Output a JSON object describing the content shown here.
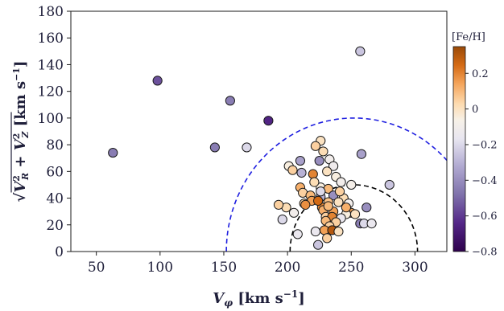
{
  "chart_data": {
    "type": "scatter",
    "xlabel": "V_φ [km s^-1]",
    "ylabel": "√(V_R² + V_Z²) [km s^-1]",
    "xlim": [
      30,
      325
    ],
    "ylim": [
      0,
      180
    ],
    "xticks": [
      50,
      100,
      150,
      200,
      250,
      300
    ],
    "yticks": [
      0,
      20,
      40,
      60,
      80,
      100,
      120,
      140,
      160,
      180
    ],
    "grid": false,
    "colorbar": {
      "label": "[Fe/H]",
      "range": [
        -0.8,
        0.35
      ],
      "ticks": [
        0.2,
        0,
        -0.2,
        -0.4,
        -0.6,
        -0.8
      ],
      "colormap": "PuOr_r"
    },
    "reference_curves": [
      {
        "shape": "semicircle",
        "center_x": 252,
        "center_y": 0,
        "radius": 100,
        "color": "#1f1fe0",
        "style": "dashed"
      },
      {
        "shape": "semicircle",
        "center_x": 252,
        "center_y": 0,
        "radius": 50,
        "color": "#000000",
        "style": "dashed"
      }
    ],
    "points": [
      {
        "x": 63,
        "y": 74,
        "feh": -0.45
      },
      {
        "x": 98,
        "y": 128,
        "feh": -0.55
      },
      {
        "x": 143,
        "y": 78,
        "feh": -0.45
      },
      {
        "x": 155,
        "y": 113,
        "feh": -0.45
      },
      {
        "x": 168,
        "y": 78,
        "feh": -0.2
      },
      {
        "x": 185,
        "y": 98,
        "feh": -0.65
      },
      {
        "x": 257,
        "y": 150,
        "feh": -0.25
      },
      {
        "x": 258,
        "y": 73,
        "feh": -0.35
      },
      {
        "x": 280,
        "y": 50,
        "feh": -0.25
      },
      {
        "x": 226,
        "y": 83,
        "feh": 0.0
      },
      {
        "x": 222,
        "y": 79,
        "feh": 0.05
      },
      {
        "x": 228,
        "y": 75,
        "feh": 0.02
      },
      {
        "x": 233,
        "y": 69,
        "feh": -0.1
      },
      {
        "x": 225,
        "y": 68,
        "feh": -0.4
      },
      {
        "x": 210,
        "y": 68,
        "feh": -0.35
      },
      {
        "x": 236,
        "y": 64,
        "feh": -0.12
      },
      {
        "x": 201,
        "y": 64,
        "feh": -0.05
      },
      {
        "x": 204,
        "y": 61,
        "feh": 0.05
      },
      {
        "x": 211,
        "y": 59,
        "feh": -0.3
      },
      {
        "x": 231,
        "y": 60,
        "feh": 0.0
      },
      {
        "x": 220,
        "y": 58,
        "feh": 0.2
      },
      {
        "x": 238,
        "y": 56,
        "feh": -0.05
      },
      {
        "x": 242,
        "y": 52,
        "feh": -0.1
      },
      {
        "x": 250,
        "y": 50,
        "feh": -0.08
      },
      {
        "x": 226,
        "y": 48,
        "feh": -0.05
      },
      {
        "x": 210,
        "y": 48,
        "feh": 0.12
      },
      {
        "x": 232,
        "y": 47,
        "feh": 0.1
      },
      {
        "x": 212,
        "y": 44,
        "feh": 0.05
      },
      {
        "x": 218,
        "y": 42,
        "feh": 0.1
      },
      {
        "x": 226,
        "y": 41,
        "feh": -0.3
      },
      {
        "x": 236,
        "y": 42,
        "feh": -0.4
      },
      {
        "x": 244,
        "y": 40,
        "feh": 0.02
      },
      {
        "x": 219,
        "y": 38,
        "feh": 0.15
      },
      {
        "x": 213,
        "y": 36,
        "feh": 0.05
      },
      {
        "x": 232,
        "y": 37,
        "feh": 0.08
      },
      {
        "x": 240,
        "y": 37,
        "feh": 0.0
      },
      {
        "x": 248,
        "y": 36,
        "feh": -0.1
      },
      {
        "x": 214,
        "y": 35,
        "feh": 0.18
      },
      {
        "x": 227,
        "y": 33,
        "feh": 0.2
      },
      {
        "x": 228,
        "y": 31,
        "feh": 0.12
      },
      {
        "x": 236,
        "y": 30,
        "feh": 0.15
      },
      {
        "x": 250,
        "y": 29,
        "feh": 0.15
      },
      {
        "x": 253,
        "y": 28,
        "feh": 0.0
      },
      {
        "x": 246,
        "y": 28,
        "feh": -0.05
      },
      {
        "x": 230,
        "y": 26,
        "feh": 0.05
      },
      {
        "x": 235,
        "y": 26,
        "feh": 0.2
      },
      {
        "x": 242,
        "y": 25,
        "feh": -0.15
      },
      {
        "x": 230,
        "y": 23,
        "feh": 0.1
      },
      {
        "x": 238,
        "y": 22,
        "feh": 0.05
      },
      {
        "x": 257,
        "y": 21,
        "feh": -0.45
      },
      {
        "x": 260,
        "y": 21,
        "feh": -0.2
      },
      {
        "x": 266,
        "y": 21,
        "feh": -0.15
      },
      {
        "x": 262,
        "y": 33,
        "feh": -0.4
      },
      {
        "x": 196,
        "y": 24,
        "feh": -0.2
      },
      {
        "x": 205,
        "y": 29,
        "feh": -0.1
      },
      {
        "x": 199,
        "y": 33,
        "feh": 0.02
      },
      {
        "x": 193,
        "y": 35,
        "feh": 0.05
      },
      {
        "x": 233,
        "y": 19,
        "feh": 0.05
      },
      {
        "x": 229,
        "y": 16,
        "feh": 0.15
      },
      {
        "x": 235,
        "y": 16,
        "feh": 0.3
      },
      {
        "x": 240,
        "y": 15,
        "feh": 0.0
      },
      {
        "x": 222,
        "y": 15,
        "feh": -0.15
      },
      {
        "x": 208,
        "y": 13,
        "feh": -0.15
      },
      {
        "x": 231,
        "y": 10,
        "feh": 0.05
      },
      {
        "x": 224,
        "y": 5,
        "feh": -0.25
      },
      {
        "x": 226,
        "y": 45,
        "feh": -0.2
      },
      {
        "x": 221,
        "y": 52,
        "feh": 0.02
      },
      {
        "x": 241,
        "y": 45,
        "feh": 0.05
      },
      {
        "x": 246,
        "y": 33,
        "feh": 0.12
      },
      {
        "x": 224,
        "y": 38,
        "feh": 0.25
      },
      {
        "x": 232,
        "y": 34,
        "feh": 0.1
      }
    ]
  }
}
